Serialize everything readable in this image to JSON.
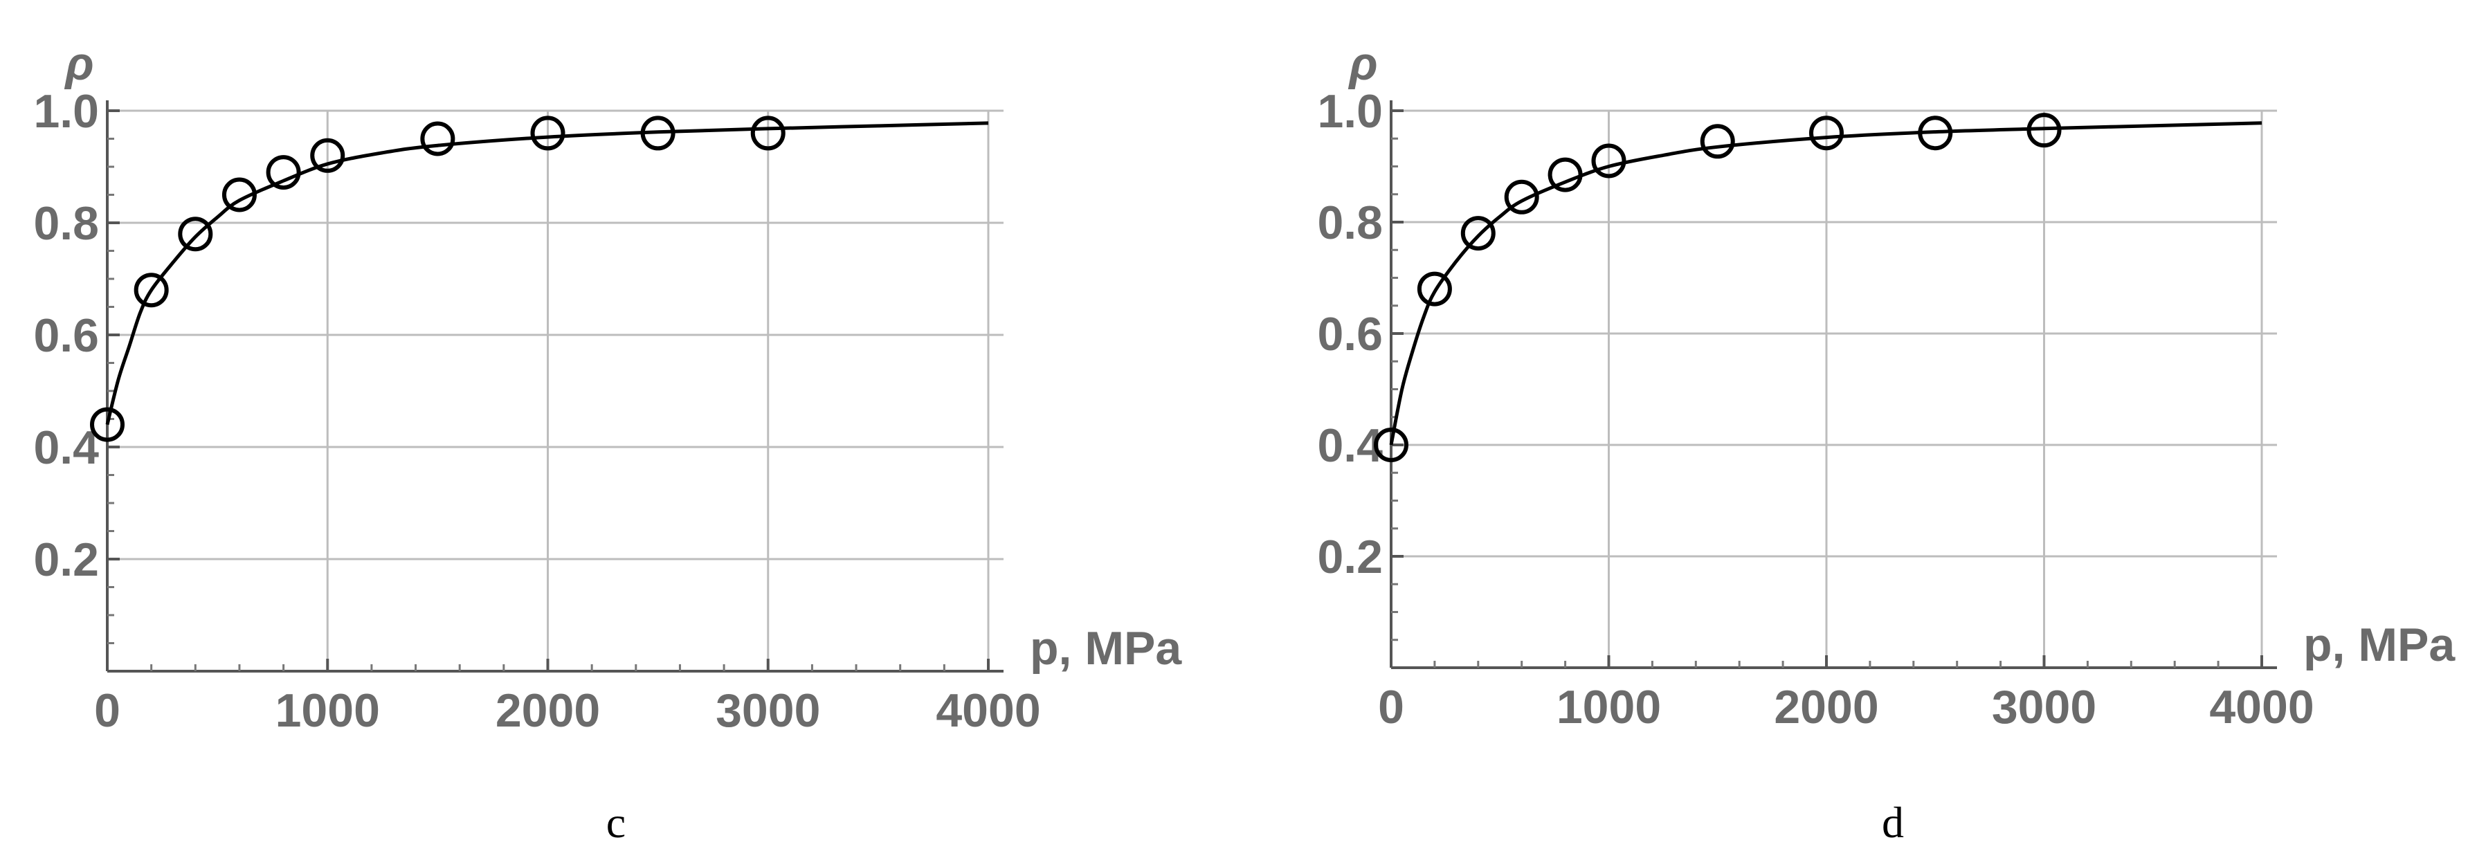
{
  "chart_data": [
    {
      "type": "scatter",
      "panel_label": "c",
      "xlabel": "p, MPa",
      "ylabel": "ρ",
      "xlim": [
        0,
        4000
      ],
      "ylim": [
        0,
        1.0
      ],
      "x_ticks": [
        "0",
        "1000",
        "2000",
        "3000",
        "4000"
      ],
      "y_ticks": [
        "0.2",
        "0.4",
        "0.6",
        "0.8",
        "1.0"
      ],
      "grid": true,
      "points": {
        "x": [
          0,
          200,
          400,
          600,
          800,
          1000,
          1500,
          2000,
          2500,
          3000
        ],
        "y": [
          0.44,
          0.68,
          0.78,
          0.85,
          0.89,
          0.92,
          0.95,
          0.96,
          0.96,
          0.96
        ]
      },
      "fit_curve": {
        "x": [
          0,
          50,
          100,
          150,
          200,
          300,
          400,
          500,
          600,
          800,
          1000,
          1250,
          1500,
          2000,
          2500,
          3000,
          3500,
          4000
        ],
        "y": [
          0.44,
          0.52,
          0.58,
          0.64,
          0.68,
          0.73,
          0.775,
          0.81,
          0.84,
          0.875,
          0.905,
          0.925,
          0.938,
          0.953,
          0.962,
          0.968,
          0.973,
          0.978
        ]
      }
    },
    {
      "type": "scatter",
      "panel_label": "d",
      "xlabel": "p, MPa",
      "ylabel": "ρ",
      "xlim": [
        0,
        4000
      ],
      "ylim": [
        0,
        1.0
      ],
      "x_ticks": [
        "0",
        "1000",
        "2000",
        "3000",
        "4000"
      ],
      "y_ticks": [
        "0.2",
        "0.4",
        "0.6",
        "0.8",
        "1.0"
      ],
      "grid": true,
      "points": {
        "x": [
          0,
          200,
          400,
          600,
          800,
          1000,
          1500,
          2000,
          2500,
          3000
        ],
        "y": [
          0.4,
          0.68,
          0.78,
          0.845,
          0.885,
          0.91,
          0.945,
          0.96,
          0.96,
          0.965
        ]
      },
      "fit_curve": {
        "x": [
          0,
          50,
          100,
          150,
          200,
          300,
          400,
          500,
          600,
          800,
          1000,
          1250,
          1500,
          2000,
          2500,
          3000,
          3500,
          4000
        ],
        "y": [
          0.4,
          0.5,
          0.57,
          0.63,
          0.675,
          0.73,
          0.775,
          0.81,
          0.838,
          0.872,
          0.9,
          0.92,
          0.935,
          0.952,
          0.962,
          0.968,
          0.973,
          0.978
        ]
      }
    }
  ]
}
